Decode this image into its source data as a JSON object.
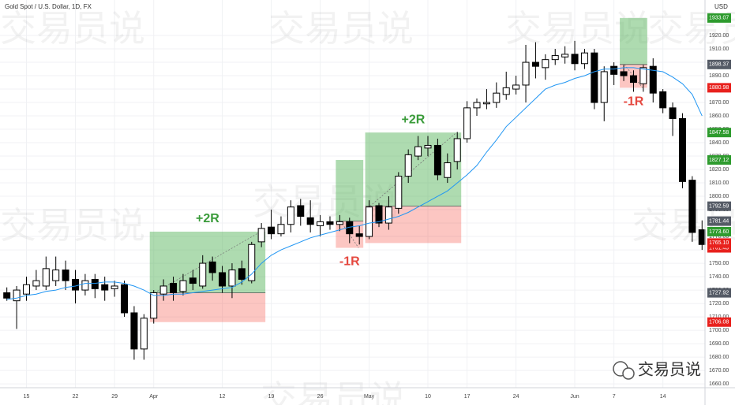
{
  "header": {
    "symbol": "Gold Spot / U.S. Dollar, 1D, FX",
    "currency": "USD"
  },
  "watermark": "交易员说",
  "chart_data": {
    "type": "candlestick",
    "open": [
      1728,
      1722,
      1727,
      1733,
      1733,
      1737,
      1745,
      1738,
      1730,
      1738,
      1734,
      1731,
      1734,
      1713,
      1686,
      1709,
      1727,
      1735,
      1729,
      1739,
      1733,
      1751,
      1743,
      1733,
      1746,
      1737,
      1766,
      1777,
      1772,
      1779,
      1793,
      1784,
      1778,
      1781,
      1779,
      1781,
      1772,
      1770,
      1793,
      1780,
      1791,
      1815,
      1830,
      1836,
      1838,
      1814,
      1826,
      1843,
      1866,
      1869,
      1870,
      1876,
      1880,
      1883,
      1900,
      1896,
      1902,
      1904,
      1906,
      1899,
      1907,
      1870,
      1897,
      1893,
      1890,
      1884,
      1897,
      1878,
      1866,
      1858,
      1812,
      1775
    ],
    "high": [
      1732,
      1733,
      1740,
      1745,
      1755,
      1755,
      1752,
      1745,
      1742,
      1742,
      1740,
      1737,
      1737,
      1718,
      1712,
      1730,
      1738,
      1740,
      1742,
      1745,
      1756,
      1755,
      1748,
      1750,
      1752,
      1766,
      1780,
      1790,
      1785,
      1797,
      1798,
      1797,
      1786,
      1785,
      1786,
      1784,
      1778,
      1797,
      1795,
      1800,
      1818,
      1835,
      1845,
      1845,
      1843,
      1832,
      1848,
      1871,
      1873,
      1880,
      1885,
      1893,
      1890,
      1913,
      1915,
      1906,
      1910,
      1912,
      1916,
      1910,
      1910,
      1897,
      1900,
      1898,
      1894,
      1898,
      1903,
      1880,
      1870,
      1862,
      1815,
      1782
    ],
    "low": [
      1722,
      1701,
      1722,
      1730,
      1730,
      1733,
      1730,
      1720,
      1726,
      1724,
      1722,
      1725,
      1710,
      1678,
      1678,
      1705,
      1722,
      1722,
      1726,
      1730,
      1731,
      1737,
      1728,
      1724,
      1734,
      1735,
      1762,
      1768,
      1770,
      1773,
      1778,
      1773,
      1770,
      1775,
      1774,
      1765,
      1764,
      1768,
      1777,
      1775,
      1787,
      1810,
      1827,
      1830,
      1812,
      1810,
      1820,
      1840,
      1860,
      1865,
      1866,
      1872,
      1876,
      1870,
      1888,
      1887,
      1898,
      1899,
      1894,
      1895,
      1865,
      1856,
      1883,
      1886,
      1878,
      1878,
      1870,
      1862,
      1845,
      1806,
      1766,
      1760
    ],
    "close": [
      1724,
      1730,
      1734,
      1737,
      1746,
      1745,
      1737,
      1730,
      1737,
      1731,
      1730,
      1733,
      1713,
      1686,
      1709,
      1728,
      1733,
      1728,
      1737,
      1735,
      1750,
      1743,
      1733,
      1745,
      1738,
      1764,
      1776,
      1772,
      1779,
      1792,
      1785,
      1779,
      1781,
      1779,
      1781,
      1772,
      1770,
      1792,
      1780,
      1792,
      1815,
      1831,
      1837,
      1838,
      1816,
      1825,
      1843,
      1866,
      1870,
      1870,
      1877,
      1881,
      1883,
      1900,
      1897,
      1902,
      1905,
      1906,
      1899,
      1907,
      1870,
      1893,
      1891,
      1890,
      1885,
      1896,
      1877,
      1866,
      1858,
      1811,
      1773,
      1764
    ],
    "up_color": "#ffffff",
    "down_color": "#000000",
    "ma": {
      "color": "#2196f3",
      "values": [
        1723,
        1724,
        1726,
        1727,
        1729,
        1730,
        1732,
        1733,
        1735,
        1735,
        1736,
        1736,
        1735,
        1733,
        1730,
        1726,
        1726,
        1727,
        1727,
        1728,
        1729,
        1730,
        1731,
        1732,
        1736,
        1742,
        1750,
        1756,
        1760,
        1763,
        1766,
        1769,
        1771,
        1773,
        1775,
        1777,
        1778,
        1780,
        1781,
        1783,
        1785,
        1788,
        1792,
        1796,
        1800,
        1804,
        1810,
        1816,
        1823,
        1833,
        1842,
        1852,
        1859,
        1866,
        1873,
        1880,
        1883,
        1885,
        1888,
        1890,
        1893,
        1895,
        1895,
        1896,
        1896,
        1895,
        1894,
        1893,
        1889,
        1884,
        1876,
        1860
      ]
    },
    "xlim": [
      -0.7,
      71.3
    ],
    "ylim": [
      1657.1,
      1946.5
    ],
    "grid": true,
    "xticks": [
      {
        "value": 2,
        "label": "15"
      },
      {
        "value": 7,
        "label": "22"
      },
      {
        "value": 11,
        "label": "29"
      },
      {
        "value": 15,
        "label": "Apr"
      },
      {
        "value": 22,
        "label": "12"
      },
      {
        "value": 27,
        "label": "19"
      },
      {
        "value": 32,
        "label": "26"
      },
      {
        "value": 37,
        "label": "May"
      },
      {
        "value": 43,
        "label": "10"
      },
      {
        "value": 47,
        "label": "17"
      },
      {
        "value": 52,
        "label": "24"
      },
      {
        "value": 58,
        "label": "Jun"
      },
      {
        "value": 62,
        "label": "7"
      },
      {
        "value": 67,
        "label": "14"
      }
    ],
    "yticks": [
      {
        "value": 1660,
        "label": "1660.00"
      },
      {
        "value": 1670,
        "label": "1670.00"
      },
      {
        "value": 1680,
        "label": "1680.00"
      },
      {
        "value": 1690,
        "label": "1690.00"
      },
      {
        "value": 1700,
        "label": "1700.00"
      },
      {
        "value": 1710,
        "label": "1710.00"
      },
      {
        "value": 1720,
        "label": "1720.00"
      },
      {
        "value": 1730,
        "label": "1730.00"
      },
      {
        "value": 1740,
        "label": "1740.00"
      },
      {
        "value": 1750,
        "label": "1750.00"
      },
      {
        "value": 1760,
        "label": "1760.00"
      },
      {
        "value": 1770,
        "label": "1770.00"
      },
      {
        "value": 1780,
        "label": "1780.00"
      },
      {
        "value": 1790,
        "label": "1790.00"
      },
      {
        "value": 1800,
        "label": "1800.00"
      },
      {
        "value": 1810,
        "label": "1810.00"
      },
      {
        "value": 1820,
        "label": "1820.00"
      },
      {
        "value": 1830,
        "label": "1830.00"
      },
      {
        "value": 1840,
        "label": "1840.00"
      },
      {
        "value": 1850,
        "label": "1850.00"
      },
      {
        "value": 1860,
        "label": "1860.00"
      },
      {
        "value": 1870,
        "label": "1870.00"
      },
      {
        "value": 1880,
        "label": "1880.00"
      },
      {
        "value": 1890,
        "label": "1890.00"
      },
      {
        "value": 1900,
        "label": "1900.00"
      },
      {
        "value": 1910,
        "label": "1910.00"
      },
      {
        "value": 1920,
        "label": "1920.00"
      }
    ],
    "trades": [
      {
        "label": "+2R",
        "start": 15,
        "end": 26,
        "entry": 1727.92,
        "stop": 1706.08,
        "target": {
          "value": 1773.6,
          "label": "1773.60"
        }
      },
      {
        "label": "-1R",
        "start": 34,
        "end": 36,
        "entry": 1781.44,
        "stop": 1761.49,
        "target": 1827.12
      },
      {
        "label": "+2R",
        "start": 37,
        "end": 46,
        "entry": 1792.59,
        "stop": {
          "value": 1765.1,
          "label": "1765.10"
        },
        "target": 1847.58
      },
      {
        "label": "-1R",
        "start": 63,
        "end": 65,
        "entry": 1898.37,
        "stop": 1880.98,
        "target": 1933.07
      }
    ]
  }
}
